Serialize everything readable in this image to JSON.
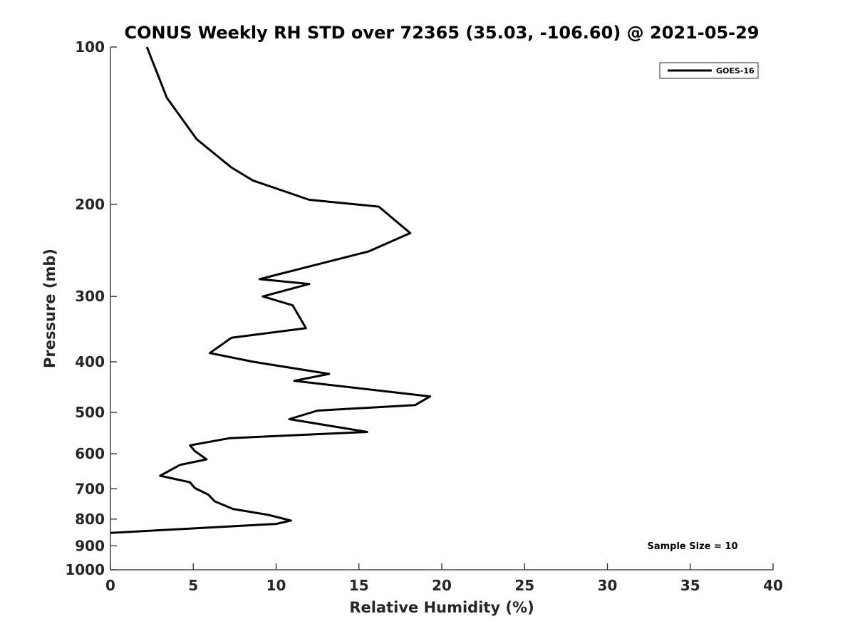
{
  "chart_data": {
    "type": "line",
    "title": "CONUS Weekly RH STD over 72365 (35.03, -106.60) @ 2021-05-29",
    "xlabel": "Relative Humidity (%)",
    "ylabel": "Pressure (mb)",
    "xlim": [
      0,
      40
    ],
    "ylim": [
      1000,
      100
    ],
    "yscale": "log",
    "y_reversed": true,
    "xticks": [
      0,
      5,
      10,
      15,
      20,
      25,
      30,
      35,
      40
    ],
    "yticks": [
      100,
      200,
      300,
      400,
      500,
      600,
      700,
      800,
      900,
      1000
    ],
    "grid": false,
    "legend": {
      "location": "top-right",
      "entries": [
        "GOES-16"
      ]
    },
    "annotation": "Sample Size = 10",
    "series": [
      {
        "name": "GOES-16",
        "color": "#000000",
        "points": [
          [
            2.2,
            100
          ],
          [
            3.4,
            125
          ],
          [
            5.2,
            150
          ],
          [
            7.3,
            170
          ],
          [
            8.6,
            180
          ],
          [
            12.0,
            196
          ],
          [
            16.2,
            202
          ],
          [
            18.1,
            227
          ],
          [
            15.6,
            246
          ],
          [
            9.0,
            278
          ],
          [
            12.0,
            284
          ],
          [
            9.2,
            300
          ],
          [
            11.0,
            312
          ],
          [
            11.8,
            345
          ],
          [
            7.3,
            360
          ],
          [
            6.0,
            385
          ],
          [
            8.6,
            400
          ],
          [
            13.2,
            422
          ],
          [
            11.1,
            435
          ],
          [
            19.3,
            466
          ],
          [
            18.4,
            484
          ],
          [
            12.5,
            496
          ],
          [
            10.8,
            515
          ],
          [
            15.5,
            545
          ],
          [
            7.2,
            560
          ],
          [
            4.8,
            578
          ],
          [
            5.1,
            593
          ],
          [
            5.8,
            615
          ],
          [
            4.2,
            630
          ],
          [
            3.0,
            661
          ],
          [
            4.8,
            680
          ],
          [
            5.1,
            698
          ],
          [
            5.9,
            718
          ],
          [
            6.3,
            740
          ],
          [
            7.4,
            765
          ],
          [
            9.5,
            785
          ],
          [
            10.9,
            805
          ],
          [
            10.0,
            817
          ],
          [
            0.0,
            850
          ]
        ]
      }
    ]
  }
}
